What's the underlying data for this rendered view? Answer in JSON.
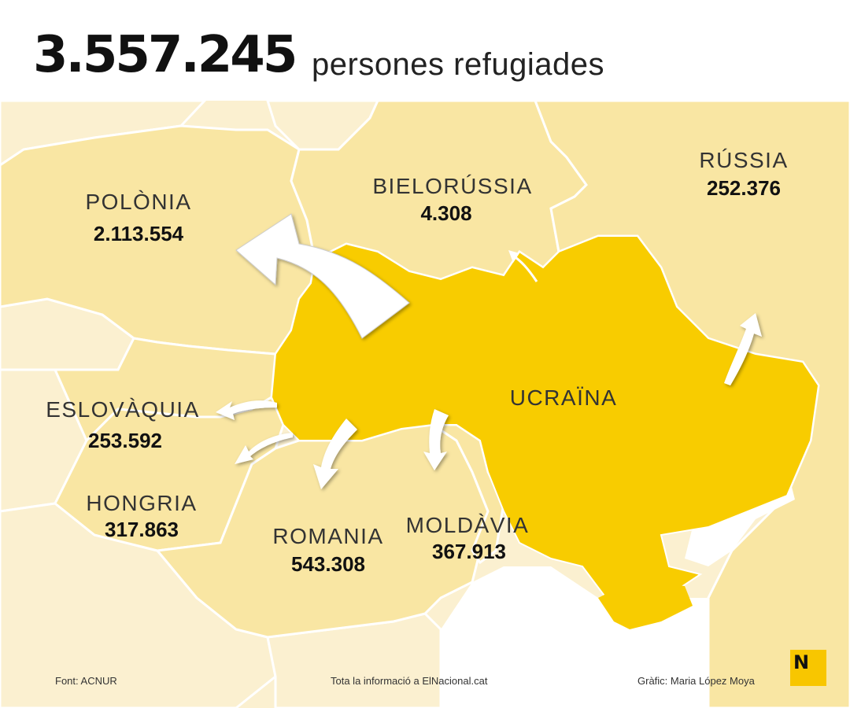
{
  "header": {
    "total": "3.557.245",
    "total_label": "persones refugiades"
  },
  "countries": {
    "polonia": {
      "name": "POLÒNIA",
      "value": "2.113.554"
    },
    "bielorussia": {
      "name": "BIELORÚSSIA",
      "value": "4.308"
    },
    "russia": {
      "name": "RÚSSIA",
      "value": "252.376"
    },
    "eslovaquia": {
      "name": "ESLOVÀQUIA",
      "value": "253.592"
    },
    "hongria": {
      "name": "HONGRIA",
      "value": "317.863"
    },
    "romania": {
      "name": "ROMANIA",
      "value": "543.308"
    },
    "moldavia": {
      "name": "MOLDÀVIA",
      "value": "367.913"
    },
    "ucraina": {
      "name": "UCRAÏNA"
    }
  },
  "footer": {
    "source": "Font: ACNUR",
    "info": "Tota la informació a ElNacional.cat",
    "credit": "Gràfic: Maria López Moya",
    "logo": "N"
  },
  "colors": {
    "ukraine": "#f8cc00",
    "neighbors": "#f9e6a3",
    "far_countries": "#fbf0d0",
    "sea": "#ffffff",
    "arrows": "#ffffff"
  }
}
